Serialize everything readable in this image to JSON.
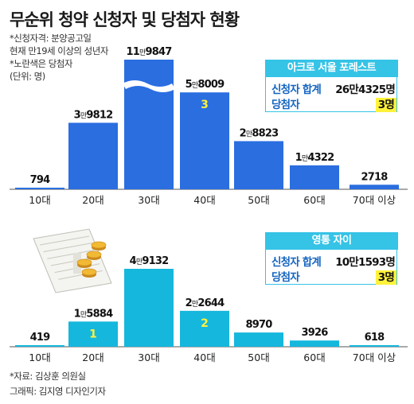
{
  "title": "무순위 청약 신청자 및 당첨자 현황",
  "notes": [
    "*신청자격: 분양공고일",
    "현재 만19세 이상의 성년자",
    "*노란색은 당첨자",
    "(단위: 명)"
  ],
  "colors": {
    "chart1_bar": "#2a6ee0",
    "chart2_bar": "#16b7dc",
    "winner": "#fff23a",
    "box": "#35c3e6"
  },
  "chart_data": [
    {
      "type": "bar",
      "name": "아크로 서울 포레스트",
      "categories": [
        "10대",
        "20대",
        "30대",
        "40대",
        "50대",
        "60대",
        "70대 이상"
      ],
      "values": [
        794,
        39812,
        119847,
        58009,
        28823,
        14322,
        2718
      ],
      "value_labels": [
        "794",
        "3만9812",
        "11만9847",
        "5만8009",
        "2만8823",
        "1만4322",
        "2718"
      ],
      "winners": [
        null,
        null,
        null,
        3,
        null,
        null,
        null
      ],
      "axis_break": true,
      "summary": {
        "title": "아크로 서울 포레스트",
        "applicants_label": "신청자 합계",
        "applicants_value": "26만4325명",
        "winners_label": "당첨자",
        "winners_value": "3명"
      }
    },
    {
      "type": "bar",
      "name": "영통 자이",
      "categories": [
        "10대",
        "20대",
        "30대",
        "40대",
        "50대",
        "60대",
        "70대 이상"
      ],
      "values": [
        419,
        15884,
        49132,
        22644,
        8970,
        3926,
        618
      ],
      "value_labels": [
        "419",
        "1만5884",
        "4만9132",
        "2만2644",
        "8970",
        "3926",
        "618"
      ],
      "winners": [
        null,
        1,
        null,
        2,
        null,
        null,
        null
      ],
      "axis_break": false,
      "summary": {
        "title": "영통 자이",
        "applicants_label": "신청자 합계",
        "applicants_value": "10만1593명",
        "winners_label": "당첨자",
        "winners_value": "3명"
      }
    }
  ],
  "footer": {
    "source": "*자료: 김상훈 의원실",
    "credit": "그래픽: 김지영 디자인기자"
  }
}
